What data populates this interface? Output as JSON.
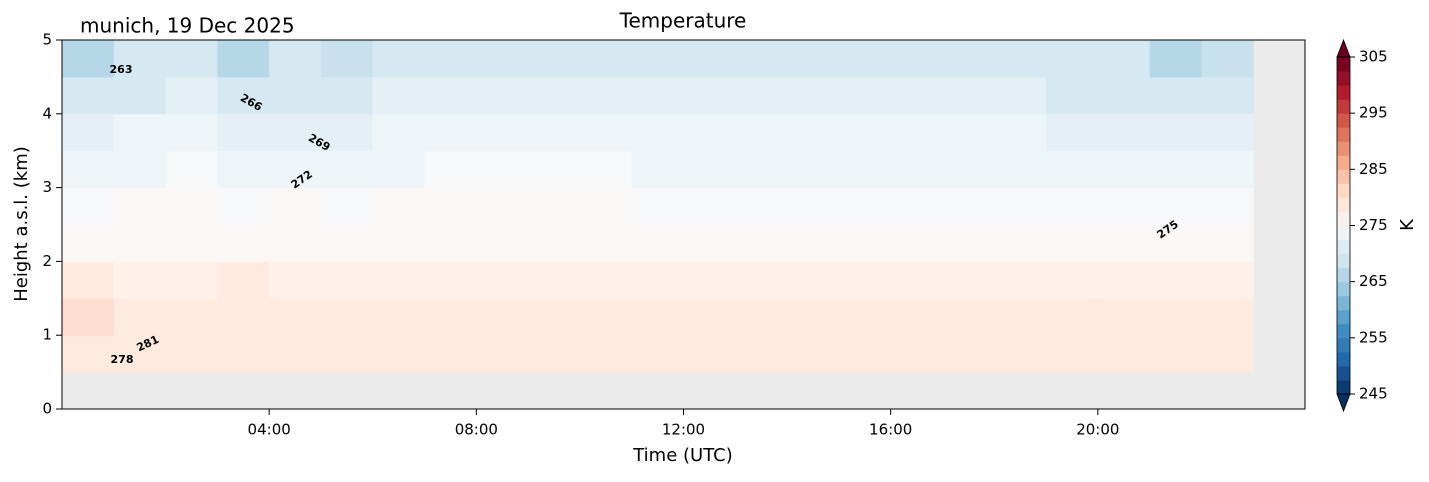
{
  "chart_data": {
    "type": "heatmap",
    "title": "Temperature",
    "annotation": "munich, 19 Dec 2025",
    "x_label": "Time (UTC)",
    "y_label": "Height a.s.l. (km)",
    "x": [
      0.5,
      1.5,
      2.5,
      3.5,
      4.5,
      5.5,
      6.5,
      7.5,
      8.5,
      9.5,
      10.5,
      11.5,
      12.5,
      13.5,
      14.5,
      15.5,
      16.5,
      17.5,
      18.5,
      19.5,
      20.5,
      21.5,
      22.5
    ],
    "y": [
      0.75,
      1.25,
      1.75,
      2.25,
      2.75,
      3.25,
      3.75,
      4.25,
      4.75
    ],
    "z": [
      [
        282,
        282,
        281,
        281,
        281,
        280,
        280,
        280,
        280,
        280,
        280,
        280,
        281,
        281,
        281,
        281,
        281,
        281,
        281,
        281,
        281,
        282,
        282
      ],
      [
        283,
        282,
        281,
        282,
        281,
        280,
        280,
        280,
        280,
        280,
        280,
        280,
        280,
        280,
        280,
        280,
        280,
        280,
        280,
        280,
        280,
        282,
        281
      ],
      [
        280,
        279,
        279,
        280,
        279,
        279,
        279,
        279,
        279,
        279,
        279,
        279,
        279,
        278,
        278,
        278,
        278,
        278,
        278,
        278,
        278,
        279,
        278
      ],
      [
        277,
        277,
        277,
        277,
        277,
        277,
        277,
        277,
        277,
        277,
        277,
        277,
        277,
        276,
        276,
        276,
        276,
        276,
        276,
        276,
        276,
        276,
        276
      ],
      [
        274,
        275,
        275,
        274,
        275,
        274,
        275,
        275,
        275,
        275,
        275,
        274,
        274,
        274,
        274,
        274,
        274,
        274,
        274,
        274,
        274,
        274,
        274
      ],
      [
        271,
        272,
        273,
        271,
        272,
        271,
        272,
        273,
        273,
        273,
        273,
        272,
        272,
        272,
        272,
        272,
        272,
        272,
        272,
        272,
        272,
        271,
        272
      ],
      [
        268,
        270,
        271,
        268,
        269,
        269,
        270,
        271,
        271,
        271,
        271,
        270,
        270,
        270,
        270,
        270,
        270,
        270,
        270,
        269,
        269,
        268,
        269
      ],
      [
        265,
        267,
        268,
        265,
        267,
        266,
        268,
        268,
        268,
        268,
        268,
        268,
        268,
        268,
        268,
        268,
        268,
        268,
        268,
        267,
        267,
        265,
        266
      ],
      [
        262,
        265,
        266,
        262,
        265,
        263,
        265,
        266,
        266,
        266,
        266,
        266,
        266,
        266,
        266,
        266,
        266,
        265,
        265,
        265,
        265,
        262,
        264
      ]
    ],
    "xlim": [
      0,
      24
    ],
    "xticks": [
      {
        "value": 4,
        "label": "04:00"
      },
      {
        "value": 8,
        "label": "08:00"
      },
      {
        "value": 12,
        "label": "12:00"
      },
      {
        "value": 16,
        "label": "16:00"
      },
      {
        "value": 20,
        "label": "20:00"
      }
    ],
    "ylim": [
      0,
      5
    ],
    "yticks": [
      0,
      1,
      2,
      3,
      4,
      5
    ],
    "contour_labels": [
      263,
      266,
      269,
      272,
      275,
      278,
      281
    ],
    "colorbar": {
      "label": "K",
      "clim": [
        245,
        305
      ],
      "ticks": [
        245,
        255,
        265,
        275,
        285,
        295,
        305
      ],
      "step": 2.5,
      "colormap": [
        "#053061",
        "#2166ac",
        "#4393c3",
        "#92c5de",
        "#d1e5f0",
        "#f7f7f7",
        "#fddbc7",
        "#f4a582",
        "#d6604d",
        "#b2182b",
        "#67001f"
      ]
    },
    "alpha": 0.55,
    "background": "#ebebeb"
  }
}
